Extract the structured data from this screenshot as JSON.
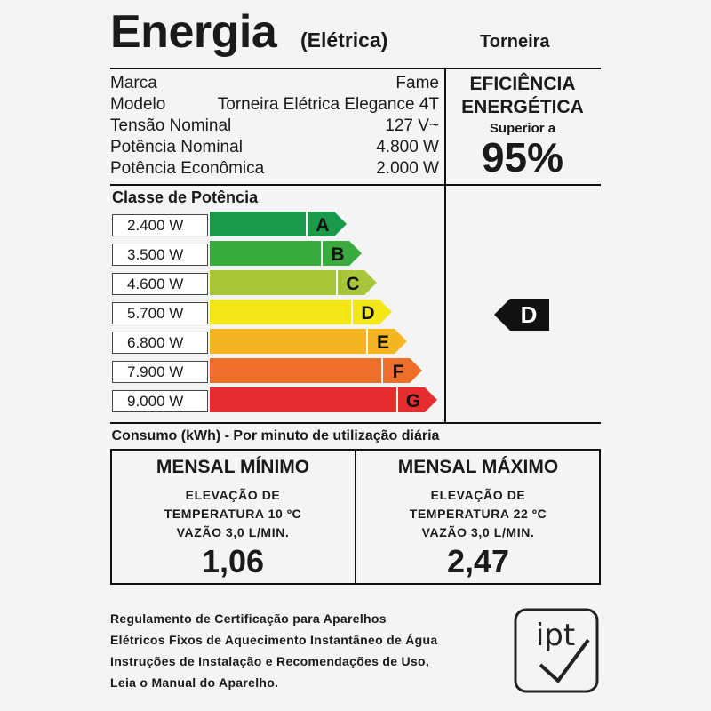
{
  "header": {
    "title": "Energia",
    "subtitle": "(Elétrica)",
    "product_type": "Torneira"
  },
  "specs": [
    {
      "label": "Marca",
      "value": "Fame"
    },
    {
      "label": "Modelo",
      "value": "Torneira Elétrica Elegance 4T"
    },
    {
      "label": "Tensão Nominal",
      "value": "127 V~"
    },
    {
      "label": "Potência Nominal",
      "value": "4.800 W"
    },
    {
      "label": "Potência Econômica",
      "value": "2.000 W"
    }
  ],
  "efficiency": {
    "line1": "EFICIÊNCIA",
    "line2": "ENERGÉTICA",
    "sub": "Superior a",
    "value": "95%"
  },
  "classes": {
    "title": "Classe de Potência",
    "items": [
      {
        "watts": "2.400 W",
        "letter": "A",
        "color": "#1a9a4a"
      },
      {
        "watts": "3.500 W",
        "letter": "B",
        "color": "#3bab3f"
      },
      {
        "watts": "4.600 W",
        "letter": "C",
        "color": "#a8c63a"
      },
      {
        "watts": "5.700 W",
        "letter": "D",
        "color": "#f3e71a"
      },
      {
        "watts": "6.800 W",
        "letter": "E",
        "color": "#f5b523"
      },
      {
        "watts": "7.900 W",
        "letter": "F",
        "color": "#ee6f2a"
      },
      {
        "watts": "9.000 W",
        "letter": "G",
        "color": "#e52d2f"
      }
    ],
    "rating": "D"
  },
  "consumo": {
    "title": "Consumo (kWh) - Por minuto de utilização diária",
    "min": {
      "head": "MENSAL MÍNIMO",
      "lines": [
        "ELEVAÇÃO DE",
        "TEMPERATURA 10 ºC",
        "VAZÃO 3,0 L/MIN."
      ],
      "value": "1,06"
    },
    "max": {
      "head": "MENSAL MÁXIMO",
      "lines": [
        "ELEVAÇÃO DE",
        "TEMPERATURA 22 ºC",
        "VAZÃO 3,0 L/MIN."
      ],
      "value": "2,47"
    }
  },
  "regulation": {
    "lines": [
      "Regulamento de Certificação para Aparelhos",
      "Elétricos Fixos de Aquecimento Instantâneo de Água",
      "Instruções de Instalação e Recomendações de Uso,",
      "Leia o Manual do Aparelho."
    ],
    "logo_text": "ipt"
  }
}
